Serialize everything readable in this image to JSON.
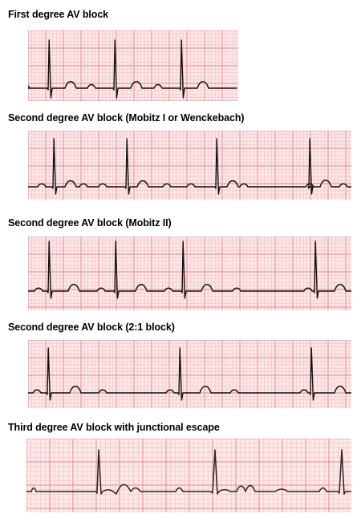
{
  "strips": [
    {
      "id": "s1",
      "title": "First degree AV block",
      "trace": "first-degree",
      "grid": "fine"
    },
    {
      "id": "s2",
      "title": "Second degree AV block (Mobitz I or Wenckebach)",
      "trace": "mobitz-1",
      "grid": "fine"
    },
    {
      "id": "s3",
      "title": "Second degree AV block (Mobitz II)",
      "trace": "mobitz-2",
      "grid": "fine"
    },
    {
      "id": "s4",
      "title": "Second degree AV block (2:1 block)",
      "trace": "two-to-one",
      "grid": "fine"
    },
    {
      "id": "s5",
      "title": "Third degree AV block with junctional escape",
      "trace": "third-degree",
      "grid": "coarse"
    }
  ],
  "colors": {
    "grid_background": "#fbe9e9",
    "grid_minor": "#f4b8bb",
    "grid_major": "#e98790",
    "trace": "#111111",
    "trace_dark": "#2a2424"
  }
}
